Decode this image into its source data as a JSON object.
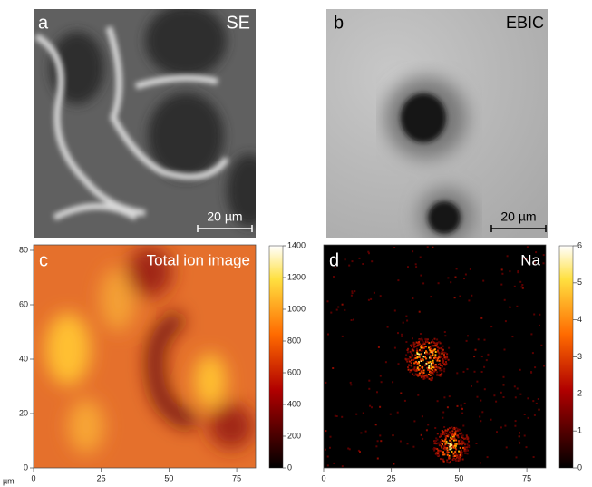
{
  "panels": [
    {
      "label": "a",
      "title": "SE",
      "scale_bar": "20 µm"
    },
    {
      "label": "b",
      "title": "EBIC",
      "scale_bar": "20 µm"
    },
    {
      "label": "c",
      "title": "Total ion image",
      "xlim": [
        0,
        82
      ],
      "ylim": [
        0,
        82
      ],
      "xticks": [
        0,
        25,
        50,
        75
      ],
      "yticks": [
        0,
        20,
        40,
        60,
        80
      ],
      "colorbar": {
        "lim": [
          0,
          1400
        ],
        "ticks": [
          0,
          200,
          400,
          600,
          800,
          1000,
          1200,
          1400
        ]
      }
    },
    {
      "label": "d",
      "title": "Na",
      "xlim": [
        0,
        82
      ],
      "ylim": [
        0,
        82
      ],
      "xticks": [
        0,
        25,
        50,
        75
      ],
      "colorbar": {
        "lim": [
          0,
          6
        ],
        "ticks": [
          0,
          1,
          2,
          3,
          4,
          5,
          6
        ]
      }
    }
  ],
  "axis_unit": "µm"
}
